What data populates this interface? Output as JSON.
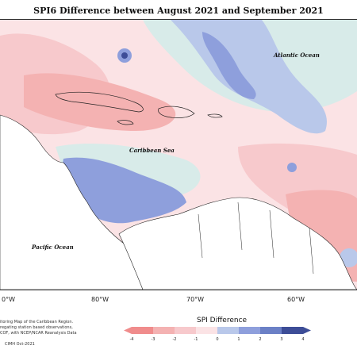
{
  "title": "SPI6 Difference between August 2021 and September 2021",
  "labels": {
    "atlantic": "Atlantic Ocean",
    "caribbean": "Caribbean Sea",
    "pacific": "Pacific Ocean"
  },
  "longitudes": [
    "0°W",
    "80°W",
    "70°W",
    "60°W"
  ],
  "footer": {
    "line1": "itoring Map of the Caribbean Region.",
    "line2": "regating station based observations,",
    "line3": "COF, with NCEP/NCAR Reanalysis Data",
    "credit": "CIMH Oct-2021"
  },
  "legend": {
    "title": "SPI Difference",
    "ticks": [
      "-4",
      "-3",
      "-2",
      "-1",
      "0",
      "1",
      "2",
      "3",
      "4"
    ],
    "colors": [
      "#f08c8c",
      "#f4b2b2",
      "#f7c9cc",
      "#fbe3e5",
      "#d8ebe9",
      "#b9c8ea",
      "#8e9fdc",
      "#6b80c6",
      "#3d4d97"
    ]
  }
}
